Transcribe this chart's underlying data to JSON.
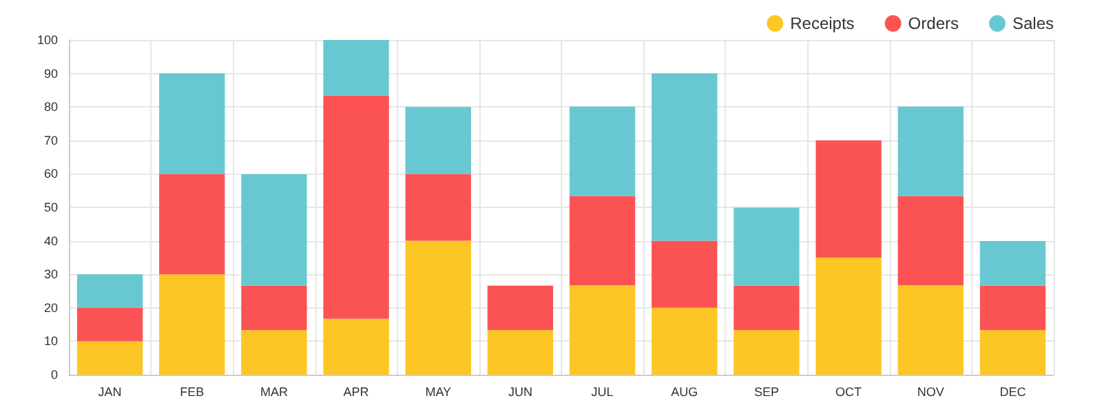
{
  "chart_data": {
    "type": "bar",
    "stacked": true,
    "categories": [
      "JAN",
      "FEB",
      "MAR",
      "APR",
      "MAY",
      "JUN",
      "JUL",
      "AUG",
      "SEP",
      "OCT",
      "NOV",
      "DEC"
    ],
    "series": [
      {
        "name": "Receipts",
        "color": "#fcc624",
        "values": [
          10,
          30,
          13.3,
          16.7,
          40,
          13.3,
          26.7,
          20,
          13.3,
          35,
          26.7,
          13.3
        ]
      },
      {
        "name": "Orders",
        "color": "#fb5353",
        "values": [
          10,
          30,
          13.3,
          66.7,
          20,
          13.3,
          26.7,
          20,
          13.3,
          35,
          26.7,
          13.3
        ]
      },
      {
        "name": "Sales",
        "color": "#68c8d2",
        "values": [
          10,
          30,
          33.3,
          16.7,
          20,
          0,
          26.7,
          50,
          23.3,
          0,
          26.7,
          13.3
        ]
      }
    ],
    "ylim": [
      0,
      100
    ],
    "yticks": [
      0,
      10,
      20,
      30,
      40,
      50,
      60,
      70,
      80,
      90,
      100
    ],
    "grid": true,
    "legend": "top right"
  }
}
